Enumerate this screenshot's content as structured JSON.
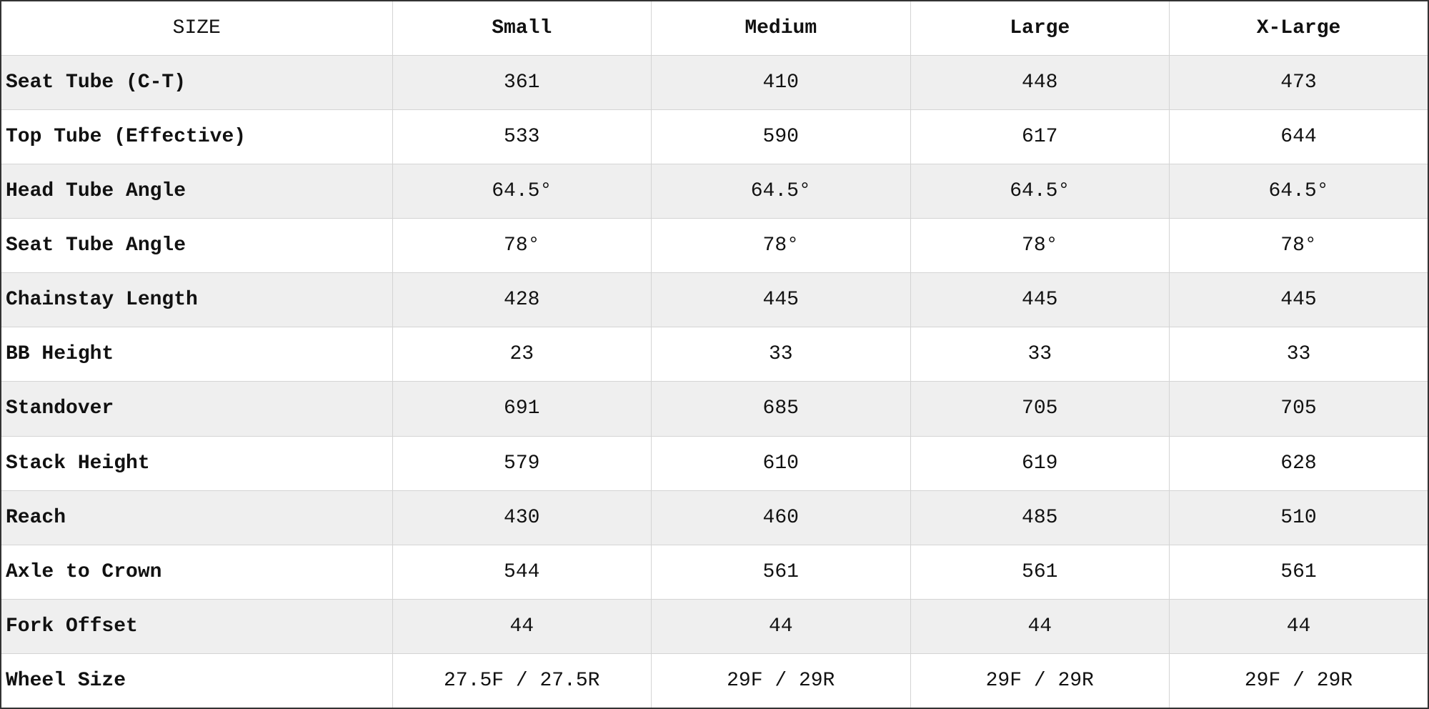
{
  "table": {
    "header": [
      "SIZE",
      "Small",
      "Medium",
      "Large",
      "X-Large"
    ],
    "rows": [
      [
        "Seat Tube (C-T)",
        "361",
        "410",
        "448",
        "473"
      ],
      [
        "Top Tube (Effective)",
        "533",
        "590",
        "617",
        "644"
      ],
      [
        "Head Tube Angle",
        "64.5°",
        "64.5°",
        "64.5°",
        "64.5°"
      ],
      [
        "Seat Tube Angle",
        "78°",
        "78°",
        "78°",
        "78°"
      ],
      [
        "Chainstay Length",
        "428",
        "445",
        "445",
        "445"
      ],
      [
        "BB Height",
        "23",
        "33",
        "33",
        "33"
      ],
      [
        "Standover",
        "691",
        "685",
        "705",
        "705"
      ],
      [
        "Stack Height",
        "579",
        "610",
        "619",
        "628"
      ],
      [
        "Reach",
        "430",
        "460",
        "485",
        "510"
      ],
      [
        "Axle to Crown",
        "544",
        "561",
        "561",
        "561"
      ],
      [
        "Fork Offset",
        "44",
        "44",
        "44",
        "44"
      ],
      [
        "Wheel Size",
        "27.5F / 27.5R",
        "29F / 29R",
        "29F / 29R",
        "29F / 29R"
      ]
    ]
  }
}
